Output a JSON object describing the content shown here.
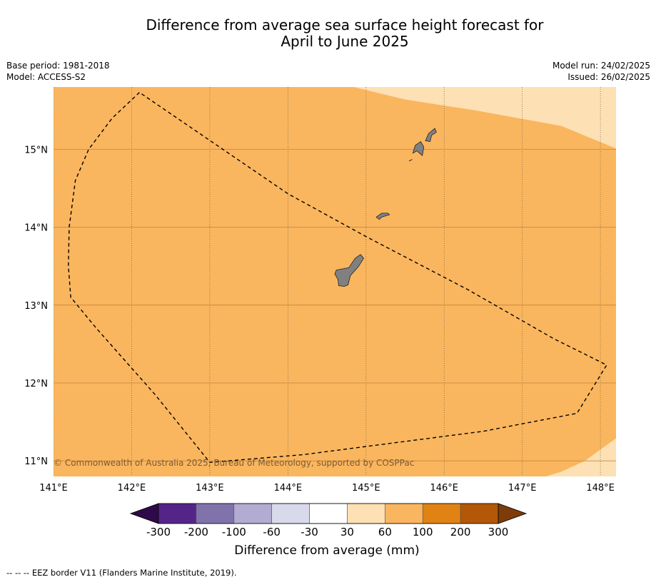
{
  "title": {
    "line1": "Difference from average sea surface height forecast for",
    "line2": "April to June 2025"
  },
  "meta": {
    "base_period": "Base period: 1981-2018",
    "model": "Model: ACCESS-S2",
    "model_run": "Model run: 24/02/2025",
    "issued": "Issued: 26/02/2025"
  },
  "map": {
    "lon_range": [
      141,
      148.2
    ],
    "lat_range": [
      10.8,
      15.8
    ],
    "lon_ticks": [
      {
        "v": 141,
        "label": "141°E"
      },
      {
        "v": 142,
        "label": "142°E"
      },
      {
        "v": 143,
        "label": "143°E"
      },
      {
        "v": 144,
        "label": "144°E"
      },
      {
        "v": 145,
        "label": "145°E"
      },
      {
        "v": 146,
        "label": "146°E"
      },
      {
        "v": 147,
        "label": "147°E"
      },
      {
        "v": 148,
        "label": "148°E"
      }
    ],
    "lat_ticks": [
      {
        "v": 15,
        "label": "15°N"
      },
      {
        "v": 14,
        "label": "14°N"
      },
      {
        "v": 13,
        "label": "13°N"
      },
      {
        "v": 12,
        "label": "12°N"
      },
      {
        "v": 11,
        "label": "11°N"
      }
    ],
    "base_color": "#fab65e",
    "light_color": "#fde0b4",
    "land_color": "#808080",
    "light_zones": [
      [
        [
          144.84,
          15.8
        ],
        [
          145.5,
          15.64
        ],
        [
          146.4,
          15.5
        ],
        [
          147.5,
          15.3
        ],
        [
          148.2,
          15.01
        ],
        [
          148.2,
          15.8
        ]
      ],
      [
        [
          147.3,
          10.8
        ],
        [
          147.5,
          10.86
        ],
        [
          147.8,
          11.0
        ],
        [
          148.2,
          11.29
        ],
        [
          148.2,
          10.8
        ]
      ]
    ],
    "eez_border": [
      [
        142.1,
        15.73
      ],
      [
        141.75,
        15.4
      ],
      [
        141.45,
        15.0
      ],
      [
        141.28,
        14.6
      ],
      [
        141.2,
        14.0
      ],
      [
        141.19,
        13.5
      ],
      [
        141.22,
        13.1
      ],
      [
        141.55,
        12.7
      ],
      [
        142.3,
        11.85
      ],
      [
        143.0,
        10.98
      ],
      [
        144.2,
        11.08
      ],
      [
        145.5,
        11.25
      ],
      [
        146.5,
        11.38
      ],
      [
        147.7,
        11.61
      ],
      [
        148.08,
        12.23
      ],
      [
        147.4,
        12.57
      ],
      [
        146.3,
        13.2
      ],
      [
        145.0,
        13.88
      ],
      [
        144.0,
        14.43
      ],
      [
        142.1,
        15.73
      ]
    ],
    "islands": [
      [
        [
          144.62,
          13.45
        ],
        [
          144.78,
          13.48
        ],
        [
          144.86,
          13.6
        ],
        [
          144.93,
          13.65
        ],
        [
          144.97,
          13.6
        ],
        [
          144.9,
          13.49
        ],
        [
          144.8,
          13.38
        ],
        [
          144.77,
          13.26
        ],
        [
          144.72,
          13.24
        ],
        [
          144.65,
          13.25
        ],
        [
          144.64,
          13.33
        ],
        [
          144.6,
          13.4
        ]
      ],
      [
        [
          145.13,
          14.13
        ],
        [
          145.2,
          14.18
        ],
        [
          145.28,
          14.18
        ],
        [
          145.3,
          14.16
        ],
        [
          145.2,
          14.13
        ],
        [
          145.17,
          14.1
        ]
      ],
      [
        [
          145.6,
          14.95
        ],
        [
          145.63,
          15.05
        ],
        [
          145.7,
          15.1
        ],
        [
          145.74,
          15.03
        ],
        [
          145.72,
          14.92
        ],
        [
          145.65,
          14.98
        ]
      ],
      [
        [
          145.76,
          15.11
        ],
        [
          145.8,
          15.2
        ],
        [
          145.88,
          15.27
        ],
        [
          145.9,
          15.22
        ],
        [
          145.84,
          15.18
        ],
        [
          145.82,
          15.1
        ]
      ],
      [
        [
          145.55,
          14.85
        ],
        [
          145.59,
          14.87
        ]
      ]
    ],
    "copyright": "© Commonwealth of Australia 2025, Bureau of Meteorology, supported by COSPPac"
  },
  "colorbar": {
    "label": "Difference from average (mm)",
    "under_color": "#2e0a4a",
    "over_color": "#7e3c0b",
    "segments": [
      {
        "color": "#542589"
      },
      {
        "color": "#8073ac"
      },
      {
        "color": "#b2abd2"
      },
      {
        "color": "#d8daeb"
      },
      {
        "color": "#ffffff"
      },
      {
        "color": "#fde0b4"
      },
      {
        "color": "#fab65e"
      },
      {
        "color": "#e08214"
      },
      {
        "color": "#b35806"
      }
    ],
    "ticks": [
      "-300",
      "-200",
      "-100",
      "-60",
      "-30",
      "30",
      "60",
      "100",
      "200",
      "300"
    ]
  },
  "footer": "--  --  -- EEZ border V11 (Flanders Marine Institute, 2019)."
}
